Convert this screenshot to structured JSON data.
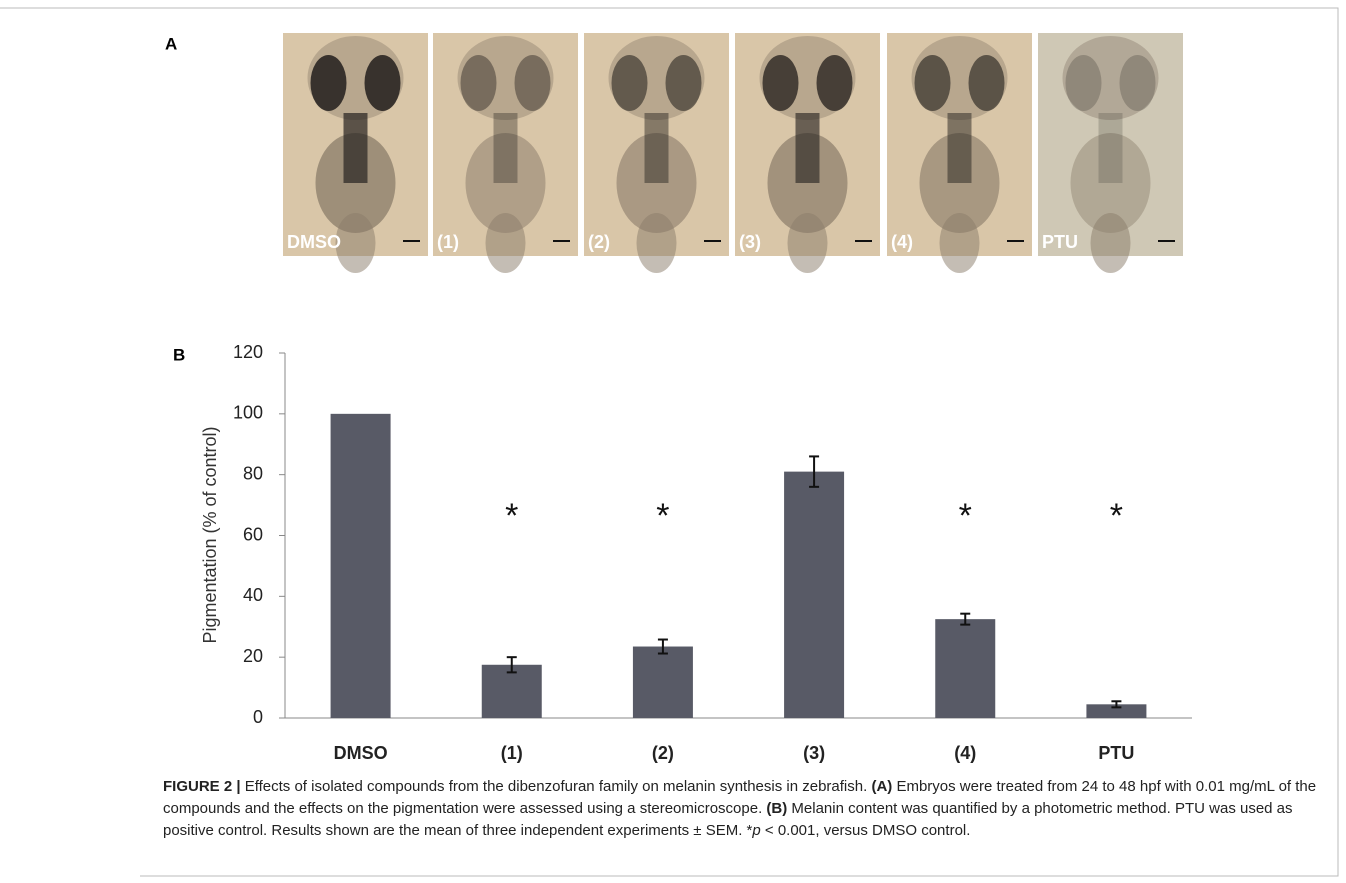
{
  "panel_a": {
    "label": "A",
    "images": [
      "DMSO",
      "(1)",
      "(2)",
      "(3)",
      "(4)",
      "PTU"
    ]
  },
  "panel_b": {
    "label": "B"
  },
  "chart_data": {
    "type": "bar",
    "y_label": "Pigmentation (% of control)",
    "categories": [
      "DMSO",
      "(1)",
      "(2)",
      "(3)",
      "(4)",
      "PTU"
    ],
    "values": [
      100,
      17.5,
      23.5,
      81,
      32.5,
      4.5
    ],
    "errors": [
      null,
      2.5,
      2.3,
      5,
      1.8,
      1
    ],
    "significance": [
      null,
      "*",
      "*",
      null,
      "*",
      "*"
    ],
    "color": "#585a66",
    "ylim": [
      0,
      120
    ],
    "yticks": [
      0,
      20,
      40,
      60,
      80,
      100,
      120
    ],
    "grid": false
  },
  "caption": {
    "segments": [
      "FIGURE 2 |",
      "Effects of isolated compounds from the dibenzofuran family on melanin synthesis in zebrafish.",
      "(A)",
      "Embryos were treated from 24 to 48 hpf with 0.01 mg/mL of the compounds and the effects on the pigmentation were assessed using a stereomicroscope.",
      "(B)",
      "Melanin content was quantified by a photometric method. PTU was used as positive control. Results shown are the mean of three independent experiments ± SEM.",
      "*",
      "p",
      "< 0.001, versus DMSO control."
    ]
  }
}
